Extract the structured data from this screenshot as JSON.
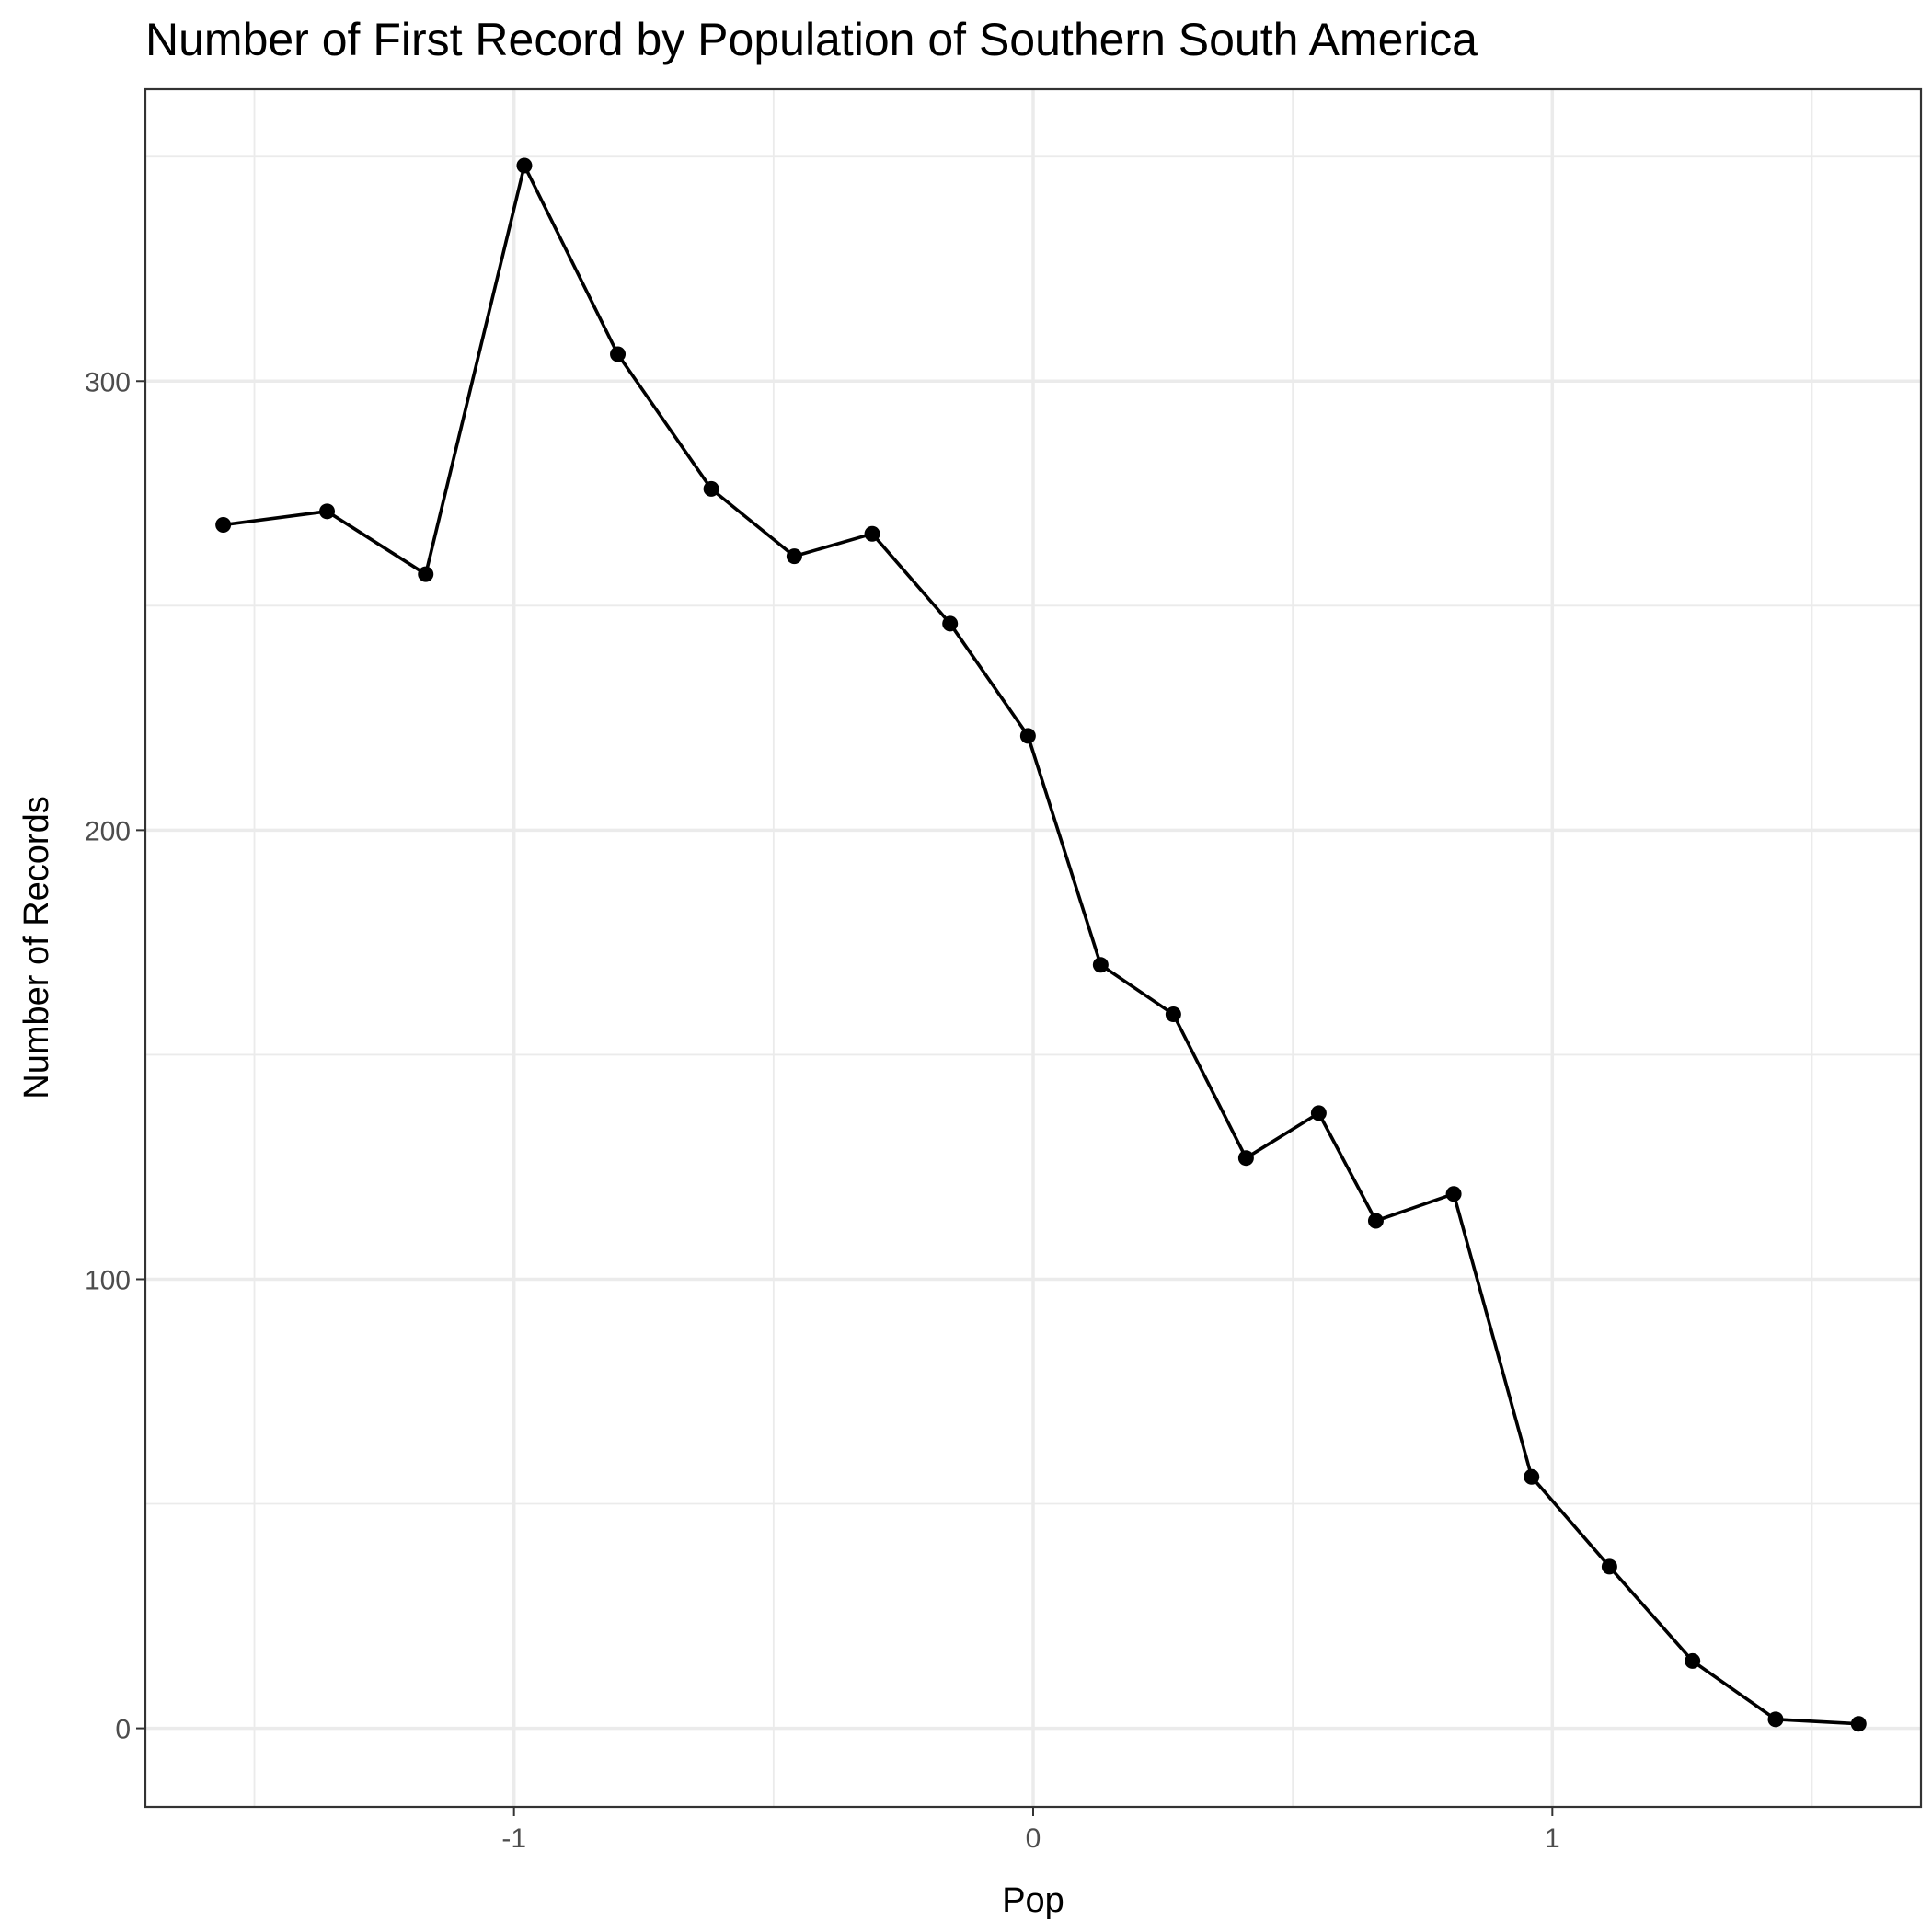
{
  "chart_data": {
    "type": "line",
    "title": "Number of First Record by Population of Southern South America",
    "xlabel": "Pop",
    "ylabel": "Number of Records",
    "xlim": [
      -1.71,
      1.71
    ],
    "ylim": [
      -17.5,
      365
    ],
    "x_ticks": [
      -1,
      0,
      1
    ],
    "x_tick_labels": [
      "-1",
      "0",
      "1"
    ],
    "y_ticks": [
      0,
      100,
      200,
      300
    ],
    "y_tick_labels": [
      "0",
      "100",
      "200",
      "300"
    ],
    "grid": true,
    "legend": "none",
    "line_color": "#000000",
    "points": [
      {
        "x": -1.56,
        "y": 268
      },
      {
        "x": -1.36,
        "y": 271
      },
      {
        "x": -1.17,
        "y": 257
      },
      {
        "x": -0.98,
        "y": 348
      },
      {
        "x": -0.8,
        "y": 306
      },
      {
        "x": -0.62,
        "y": 276
      },
      {
        "x": -0.46,
        "y": 261
      },
      {
        "x": -0.31,
        "y": 266
      },
      {
        "x": -0.16,
        "y": 246
      },
      {
        "x": -0.01,
        "y": 221
      },
      {
        "x": 0.13,
        "y": 170
      },
      {
        "x": 0.27,
        "y": 159
      },
      {
        "x": 0.41,
        "y": 127
      },
      {
        "x": 0.55,
        "y": 137
      },
      {
        "x": 0.66,
        "y": 113
      },
      {
        "x": 0.81,
        "y": 119
      },
      {
        "x": 0.96,
        "y": 56
      },
      {
        "x": 1.11,
        "y": 36
      },
      {
        "x": 1.27,
        "y": 15
      },
      {
        "x": 1.43,
        "y": 2
      },
      {
        "x": 1.59,
        "y": 1
      }
    ]
  }
}
